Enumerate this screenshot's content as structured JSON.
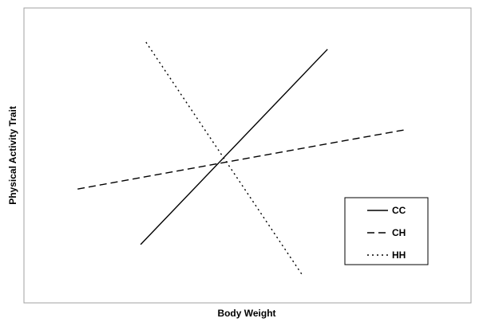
{
  "chart_data": {
    "type": "line",
    "title": "",
    "xlabel": "Body Weight",
    "ylabel": "Physical Activity Trait",
    "xlim": [
      0,
      100
    ],
    "ylim": [
      0,
      100
    ],
    "grid": false,
    "legend_position": "bottom-right",
    "series": [
      {
        "name": "CC",
        "dash": "solid",
        "points": [
          [
            26.1,
            19.8
          ],
          [
            67.9,
            86.0
          ]
        ]
      },
      {
        "name": "CH",
        "dash": "dashed",
        "points": [
          [
            12.0,
            38.6
          ],
          [
            85.6,
            58.8
          ]
        ]
      },
      {
        "name": "HH",
        "dash": "dotted",
        "points": [
          [
            27.3,
            88.4
          ],
          [
            62.2,
            9.6
          ]
        ]
      }
    ]
  }
}
